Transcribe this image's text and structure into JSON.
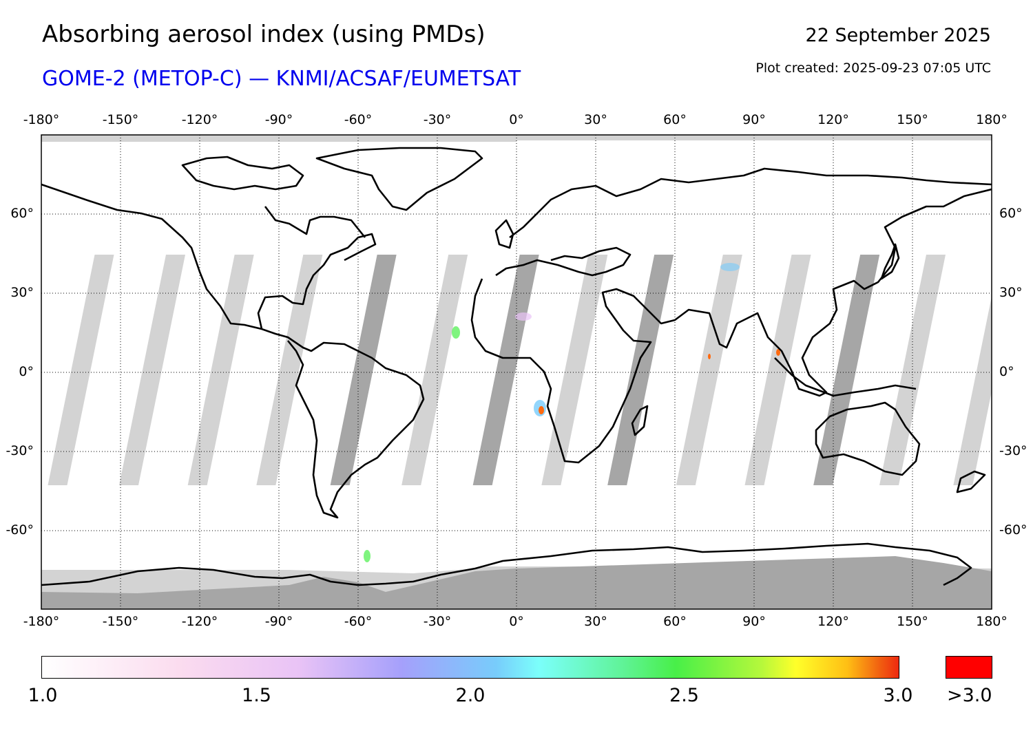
{
  "header": {
    "title": "Absorbing aerosol index (using PMDs)",
    "subtitle": "GOME-2 (METOP-C) — KNMI/ACSAF/EUMETSAT",
    "date": "22 September 2025",
    "plot_created": "Plot created: 2025-09-23 07:05 UTC"
  },
  "map": {
    "lon_ticks": [
      "-180°",
      "-150°",
      "-120°",
      "-90°",
      "-60°",
      "-30°",
      "0°",
      "30°",
      "60°",
      "90°",
      "120°",
      "150°",
      "180°"
    ],
    "lat_ticks": [
      "60°",
      "30°",
      "0°",
      "-30°",
      "-60°"
    ],
    "colors": {
      "swath_gap": "#d3d3d3",
      "swath_dark": "#a6a6a6",
      "coastline": "#000000",
      "gridline": "#000000"
    }
  },
  "colorbar": {
    "labels": [
      "1.0",
      "1.5",
      "2.0",
      "2.5",
      "3.0"
    ],
    "over_label": ">3.0",
    "over_color": "#ff0000"
  }
}
